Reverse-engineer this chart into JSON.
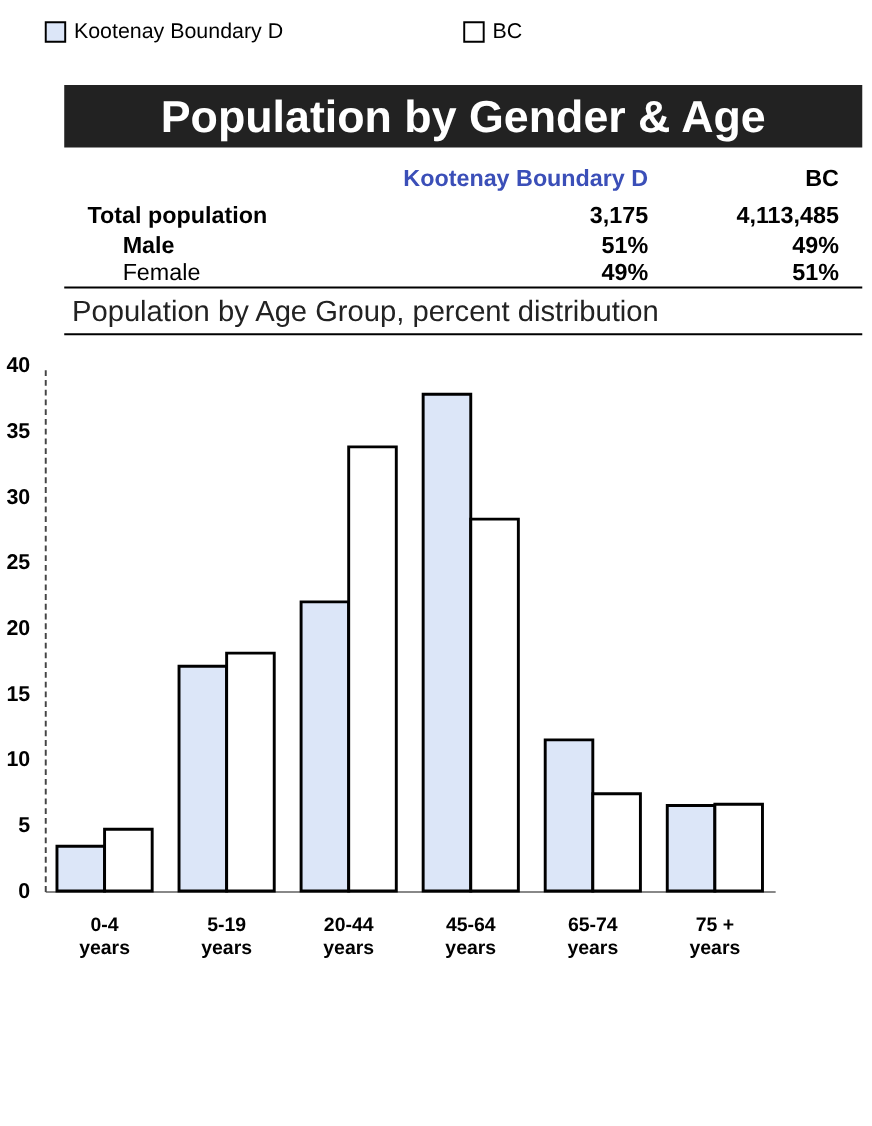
{
  "chart_data": {
    "type": "bar",
    "title": "Population by Gender & Age",
    "subtitle": "Population by Age Group, percent distribution",
    "annotations": [
      "Kootenay Boundary D",
      "BC",
      "Total population",
      "3,175",
      "4,113,485",
      "Male",
      "51%",
      "49%",
      "Female",
      "49%",
      "51%"
    ],
    "categories": [
      "0-4\nyears",
      "5-19\nyears",
      "20-44\nyears",
      "45-64\nyears",
      "65-74\nyears",
      "75 +\nyears"
    ],
    "series": [
      {
        "name": "Kootenay Boundary D",
        "color": "#dce6f8",
        "values": [
          3.4,
          17.1,
          22.0,
          37.8,
          11.5,
          6.5
        ]
      },
      {
        "name": "BC",
        "color": "#ffffff",
        "values": [
          4.7,
          18.1,
          33.8,
          28.3,
          7.4,
          6.6
        ]
      }
    ],
    "ylim": [
      0,
      40
    ],
    "yticks": [
      0,
      5,
      10,
      15,
      20,
      25,
      30,
      35,
      40
    ],
    "grid": false,
    "legend": "top"
  }
}
